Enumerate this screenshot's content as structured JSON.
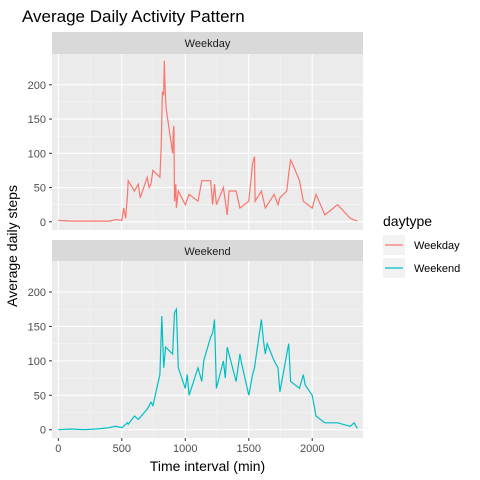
{
  "chart_data": {
    "type": "line",
    "title": "Average Daily Activity Pattern",
    "xlabel": "Time interval (min)",
    "ylabel": "Average daily steps",
    "xlim": [
      -50,
      2400
    ],
    "ylim": [
      -12,
      245
    ],
    "x_ticks": [
      0,
      500,
      1000,
      1500,
      2000
    ],
    "y_ticks": [
      0,
      50,
      100,
      150,
      200
    ],
    "grid": true,
    "facets": [
      "Weekday",
      "Weekend"
    ],
    "legend": {
      "title": "daytype",
      "position": "right",
      "entries": [
        "Weekday",
        "Weekend"
      ]
    },
    "series": [
      {
        "name": "Weekday",
        "facet": "Weekday",
        "color": "#F8766D",
        "x": [
          0,
          100,
          200,
          300,
          400,
          450,
          500,
          515,
          530,
          545,
          550,
          600,
          630,
          645,
          700,
          715,
          730,
          745,
          800,
          810,
          820,
          830,
          835,
          840,
          845,
          850,
          900,
          905,
          910,
          915,
          925,
          930,
          945,
          1000,
          1030,
          1100,
          1130,
          1200,
          1215,
          1230,
          1245,
          1300,
          1330,
          1345,
          1400,
          1430,
          1500,
          1530,
          1545,
          1550,
          1600,
          1630,
          1700,
          1730,
          1745,
          1800,
          1815,
          1830,
          1845,
          1900,
          1930,
          2000,
          2030,
          2100,
          2200,
          2300,
          2355
        ],
        "y": [
          2,
          1,
          1,
          1,
          1,
          3,
          2,
          20,
          5,
          40,
          60,
          45,
          55,
          35,
          65,
          50,
          55,
          75,
          65,
          110,
          190,
          185,
          235,
          200,
          180,
          165,
          100,
          130,
          140,
          30,
          55,
          20,
          45,
          25,
          40,
          30,
          60,
          60,
          25,
          55,
          25,
          50,
          10,
          45,
          45,
          20,
          30,
          85,
          95,
          30,
          45,
          20,
          40,
          25,
          35,
          45,
          70,
          90,
          85,
          60,
          30,
          20,
          40,
          10,
          25,
          5,
          1
        ]
      },
      {
        "name": "Weekend",
        "facet": "Weekend",
        "color": "#00BFC4",
        "x": [
          0,
          100,
          200,
          300,
          350,
          400,
          450,
          500,
          545,
          550,
          600,
          630,
          700,
          730,
          745,
          800,
          815,
          830,
          845,
          900,
          915,
          930,
          945,
          1000,
          1015,
          1030,
          1100,
          1130,
          1145,
          1200,
          1215,
          1230,
          1245,
          1300,
          1315,
          1330,
          1400,
          1430,
          1445,
          1500,
          1530,
          1545,
          1600,
          1615,
          1630,
          1645,
          1700,
          1730,
          1745,
          1800,
          1815,
          1830,
          1900,
          1930,
          1945,
          2000,
          2030,
          2100,
          2200,
          2300,
          2330,
          2355
        ],
        "y": [
          0,
          1,
          0,
          1,
          2,
          3,
          5,
          3,
          10,
          8,
          20,
          15,
          30,
          40,
          35,
          80,
          165,
          90,
          120,
          110,
          170,
          175,
          90,
          60,
          80,
          50,
          90,
          70,
          100,
          135,
          140,
          160,
          60,
          100,
          75,
          120,
          70,
          110,
          95,
          50,
          80,
          90,
          160,
          130,
          110,
          125,
          100,
          90,
          55,
          110,
          125,
          70,
          60,
          80,
          65,
          50,
          20,
          10,
          10,
          5,
          10,
          2
        ]
      }
    ]
  }
}
